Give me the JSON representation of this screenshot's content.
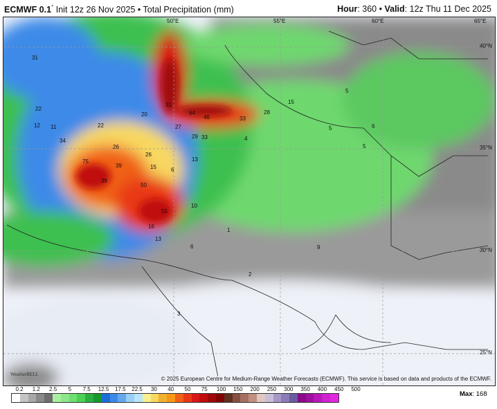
{
  "header": {
    "model": "ECMWF 0.1",
    "degree_sign": "°",
    "init": "Init 12z 26 Nov 2025",
    "sep": "•",
    "product": "Total Precipitation (mm)",
    "hour_label": "Hour",
    "hour": "360",
    "valid_label": "Valid",
    "valid": "12z Thu 11 Dec 2025"
  },
  "map": {
    "lon_labels": [
      "50°E",
      "55°E",
      "60°E",
      "65°E"
    ],
    "lat_labels": [
      "40°N",
      "35°N",
      "30°N",
      "25°N"
    ],
    "values": [
      "31",
      "22",
      "12",
      "11",
      "34",
      "22",
      "20",
      "31",
      "64",
      "46",
      "33",
      "28",
      "27",
      "29",
      "33",
      "26",
      "26",
      "39",
      "15",
      "6",
      "13",
      "75",
      "39",
      "50",
      "55",
      "10",
      "16",
      "13",
      "6",
      "5",
      "6",
      "5",
      "5",
      "4",
      "2",
      "1",
      "9",
      "3",
      "15"
    ],
    "watermark": "WeatherBELL"
  },
  "copyright": "© 2025 European Centre for Medium-Range Weather Forecasts (ECMWF). This service is based on data and products of the ECMWF.",
  "legend": {
    "ticks": [
      "0.2",
      "1.2",
      "2.5",
      "5",
      "7.5",
      "12.5",
      "17.5",
      "22.5",
      "30",
      "40",
      "50",
      "75",
      "100",
      "150",
      "200",
      "250",
      "300",
      "350",
      "400",
      "450",
      "500"
    ],
    "colors": [
      "#ffffff",
      "#c4c4c4",
      "#a8a8a8",
      "#8a8a8a",
      "#6e6e6e",
      "#a8f0a0",
      "#8ee88a",
      "#6ee070",
      "#4cd058",
      "#2ab040",
      "#18982e",
      "#1e6ed8",
      "#3c8ae8",
      "#64a8f0",
      "#9ccff6",
      "#b8e6f8",
      "#f8f090",
      "#f8d860",
      "#f0b030",
      "#f89818",
      "#f06018",
      "#e83818",
      "#d81818",
      "#c00c0c",
      "#a00808",
      "#800404",
      "#603020",
      "#885040",
      "#a87060",
      "#c09080",
      "#e0c8c0",
      "#c8c0d8",
      "#a898c8",
      "#8c7cb8",
      "#6c5aa0",
      "#8a0a8a",
      "#a010a0",
      "#b818b8",
      "#d020d0",
      "#e028e0"
    ],
    "max_label": "Max",
    "max_value": "168"
  }
}
